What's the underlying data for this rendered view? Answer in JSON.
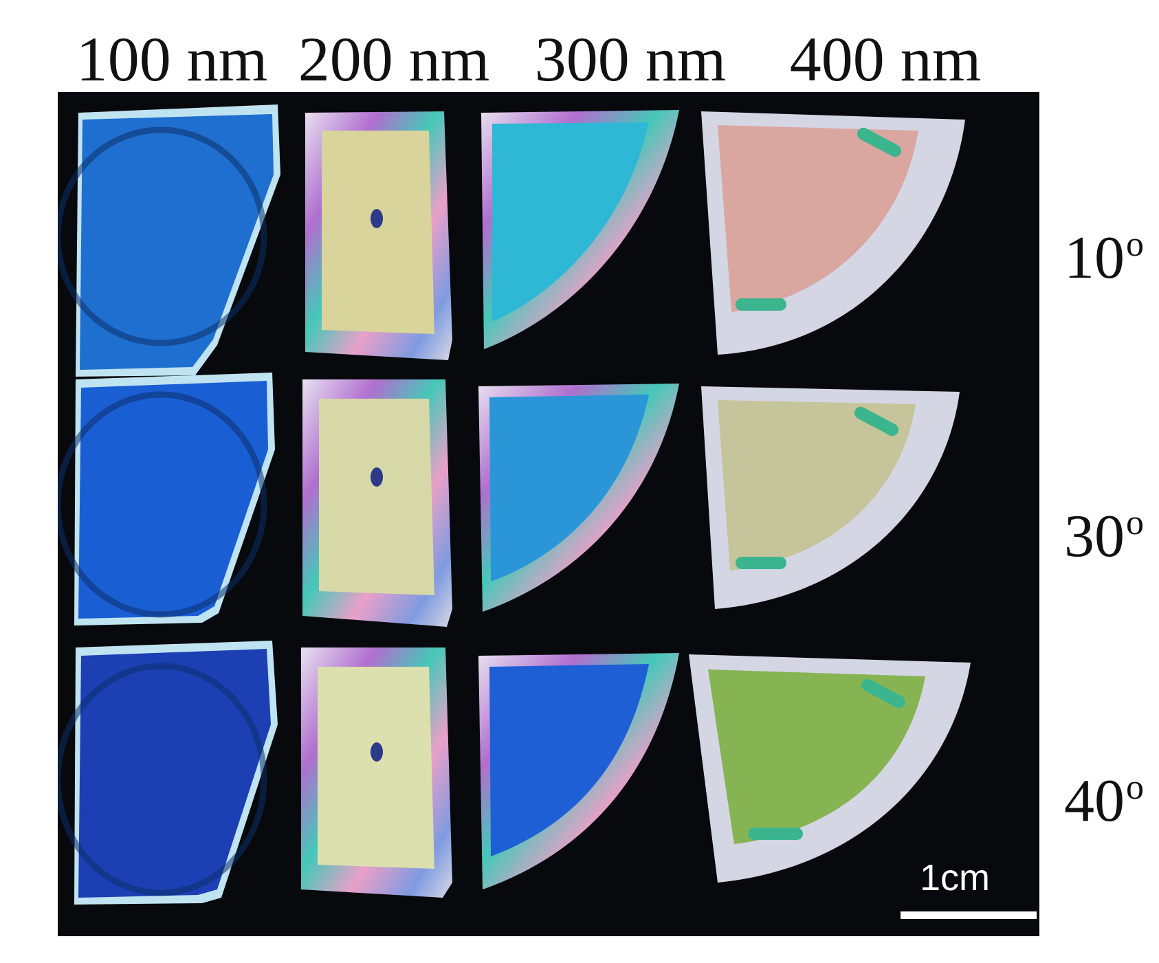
{
  "columns": [
    "100 nm",
    "200 nm",
    "300 nm",
    "400 nm"
  ],
  "rows": [
    {
      "angle": "10",
      "degree_mark": "o"
    },
    {
      "angle": "30",
      "degree_mark": "o"
    },
    {
      "angle": "40",
      "degree_mark": "o"
    }
  ],
  "scale_bar": {
    "label": "1cm"
  },
  "colors": {
    "background": "#08090d",
    "r0c0": "#1f6fd0",
    "r0c1": "#d9d49b",
    "r0c2": "#2fb8d6",
    "r0c3": "#d9a7a0",
    "r1c0": "#1a5ed4",
    "r1c1": "#d7d8a8",
    "r1c2": "#2a96d8",
    "r1c3": "#c6c49a",
    "r2c0": "#1c3fb4",
    "r2c1": "#dcdfae",
    "r2c2": "#1f5fd6",
    "r2c3": "#86b453"
  }
}
